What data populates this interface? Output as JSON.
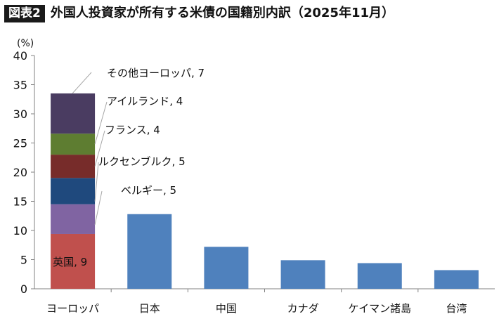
{
  "header": {
    "figure_label": "図表2",
    "title": "外国人投資家が所有する米債の国籍別内訳（2025年11月）"
  },
  "chart_data": {
    "type": "bar",
    "y_unit": "(%)",
    "ylim": [
      0,
      40
    ],
    "yticks": [
      0,
      5,
      10,
      15,
      20,
      25,
      30,
      35,
      40
    ],
    "grid": false,
    "categories": [
      "ヨーロッパ",
      "日本",
      "中国",
      "カナダ",
      "ケイマン諸島",
      "台湾"
    ],
    "values": [
      33.5,
      12.8,
      7.2,
      4.9,
      4.4,
      3.2
    ],
    "europe_breakdown": [
      {
        "label": "英国, 9",
        "value": 9.4,
        "color": "#c0504d"
      },
      {
        "label": "ベルギー, 5",
        "value": 5.1,
        "color": "#8064a2"
      },
      {
        "label": "ルクセンブルク, 5",
        "value": 4.5,
        "color": "#1f497d"
      },
      {
        "label": "フランス, 4",
        "value": 4.0,
        "color": "#772c2a"
      },
      {
        "label": "アイルランド, 4",
        "value": 3.6,
        "color": "#5e7d31"
      },
      {
        "label": "その他ヨーロッパ, 7",
        "value": 6.9,
        "color": "#4a3c61"
      }
    ],
    "bar_color": "#4f81bd"
  }
}
